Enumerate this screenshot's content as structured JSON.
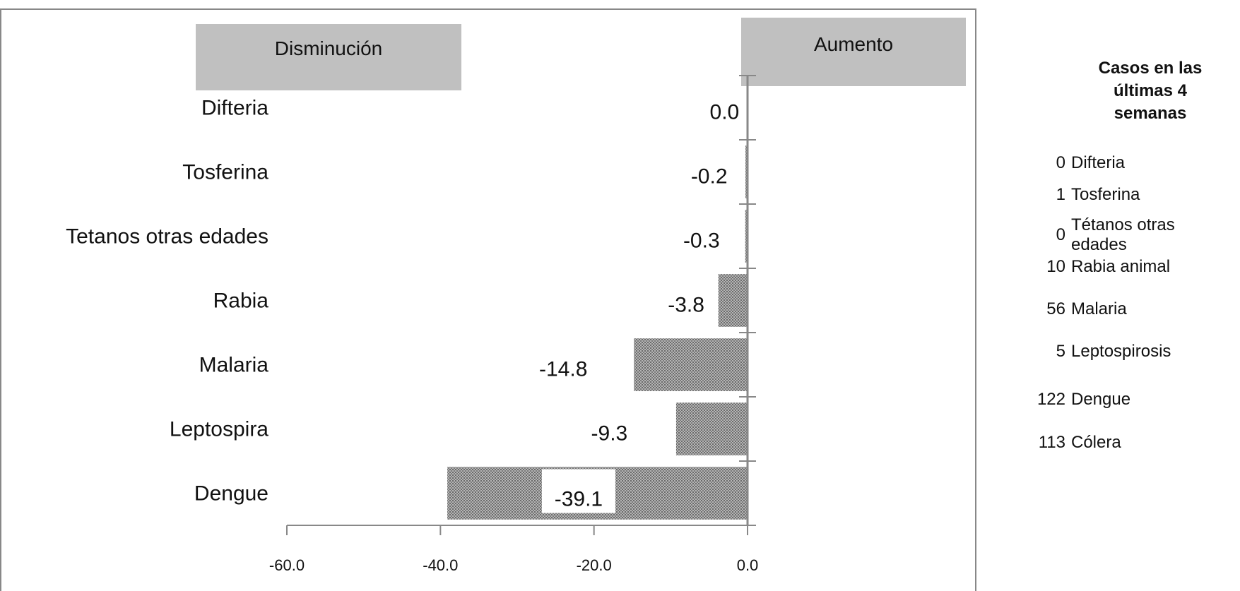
{
  "chart_data": {
    "type": "bar",
    "orientation": "horizontal",
    "categories": [
      "Difteria",
      "Tosferina",
      "Tetanos otras edades",
      "Rabia",
      "Malaria",
      "Leptospira",
      "Dengue"
    ],
    "values": [
      0.0,
      -0.2,
      -0.3,
      -3.8,
      -14.8,
      -9.3,
      -39.1
    ],
    "value_labels": [
      "0.0",
      "-0.2",
      "-0.3",
      "-3.8",
      "-14.8",
      "-9.3",
      "-39.1"
    ],
    "xlim": [
      -60,
      0
    ],
    "xticks": [
      "-60.0",
      "-40.0",
      "-20.0",
      "0.0"
    ],
    "xtick_values": [
      -60,
      -40,
      -20,
      0
    ],
    "bar_color": "#8a8a8a",
    "grid": false,
    "title": "",
    "xlabel": "",
    "ylabel": ""
  },
  "header_boxes": {
    "left": "Disminución",
    "right": "Aumento",
    "color": "#c0c0c0"
  },
  "side_panel": {
    "title_lines": [
      "Casos en las",
      "últimas 4",
      "semanas"
    ],
    "items": [
      {
        "count": "0",
        "name_lines": [
          "Difteria"
        ]
      },
      {
        "count": "1",
        "name_lines": [
          "Tosferina"
        ]
      },
      {
        "count": "0",
        "name_lines": [
          "Tétanos otras",
          "edades"
        ]
      },
      {
        "count": "10",
        "name_lines": [
          "Rabia animal"
        ]
      },
      {
        "count": "56",
        "name_lines": [
          "Malaria"
        ]
      },
      {
        "count": "5",
        "name_lines": [
          "Leptospirosis"
        ]
      },
      {
        "count": "122",
        "name_lines": [
          "Dengue"
        ]
      },
      {
        "count": "113",
        "name_lines": [
          "Cólera"
        ]
      }
    ]
  }
}
